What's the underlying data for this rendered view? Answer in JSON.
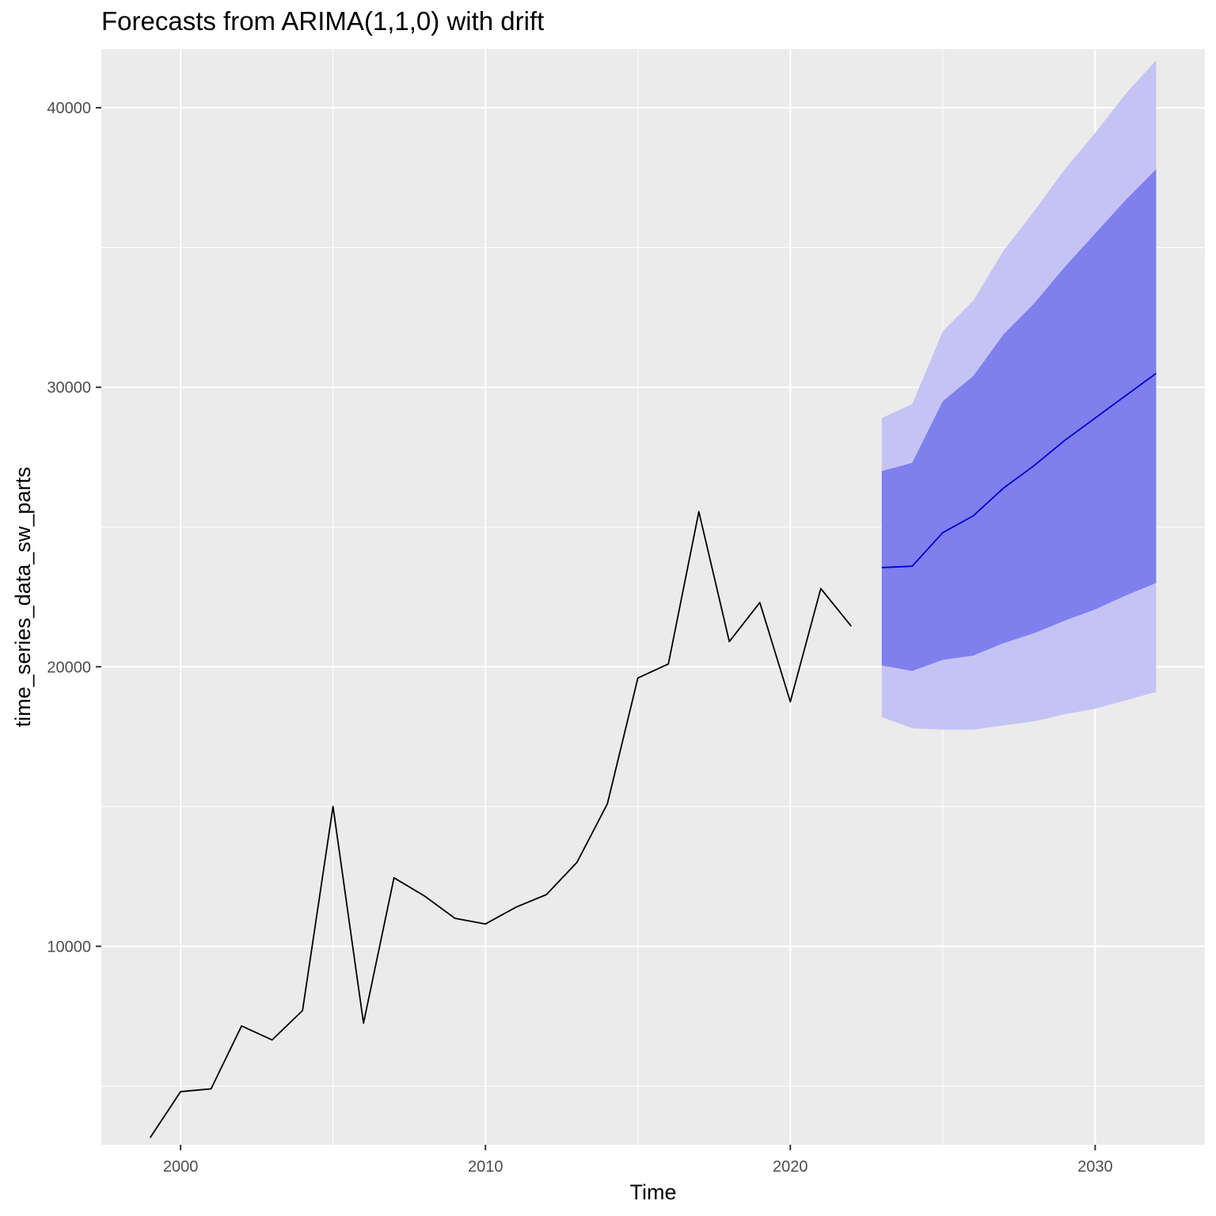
{
  "chart_data": {
    "type": "line",
    "title": "Forecasts from ARIMA(1,1,0) with drift",
    "xlabel": "Time",
    "ylabel": "time_series_data_sw_parts",
    "xlim": [
      1997.4,
      2033.6
    ],
    "ylim": [
      2900,
      42100
    ],
    "x_ticks": [
      2000,
      2010,
      2020,
      2030
    ],
    "x_tick_labels": [
      "2000",
      "2010",
      "2020",
      "2030"
    ],
    "y_ticks": [
      10000,
      20000,
      30000,
      40000
    ],
    "y_tick_labels": [
      "10000",
      "20000",
      "30000",
      "40000"
    ],
    "grid": true,
    "legend": "none",
    "colors": {
      "panel": "#ebebeb",
      "grid": "#ffffff",
      "history": "#000000",
      "forecast": "#0000cc",
      "band80": "#7f7fee",
      "band95": "#c4c4f4"
    },
    "series": [
      {
        "role": "history",
        "x": [
          1999,
          2000,
          2001,
          2002,
          2003,
          2004,
          2005,
          2006,
          2007,
          2008,
          2009,
          2010,
          2011,
          2012,
          2013,
          2014,
          2015,
          2016,
          2017,
          2018,
          2019,
          2020,
          2021,
          2022
        ],
        "values": [
          3150,
          4800,
          4900,
          7150,
          6650,
          7700,
          15000,
          7250,
          12450,
          11800,
          11000,
          10800,
          11400,
          11850,
          13000,
          15100,
          19600,
          20100,
          25550,
          20900,
          22300,
          18750,
          22800,
          21450
        ]
      },
      {
        "role": "forecast",
        "x": [
          2023,
          2024,
          2025,
          2026,
          2027,
          2028,
          2029,
          2030,
          2031,
          2032
        ],
        "values": [
          23550,
          23600,
          24800,
          25400,
          26400,
          27200,
          28100,
          28900,
          29700,
          30500
        ],
        "lo80": [
          20050,
          19850,
          20250,
          20400,
          20850,
          21200,
          21650,
          22050,
          22550,
          23000
        ],
        "hi80": [
          27000,
          27300,
          29500,
          30400,
          31900,
          33000,
          34300,
          35500,
          36700,
          37800
        ],
        "lo95": [
          18200,
          17800,
          17750,
          17750,
          17900,
          18050,
          18300,
          18500,
          18800,
          19100
        ],
        "hi95": [
          28900,
          29400,
          32000,
          33100,
          34900,
          36300,
          37800,
          39100,
          40500,
          41700
        ]
      }
    ]
  }
}
